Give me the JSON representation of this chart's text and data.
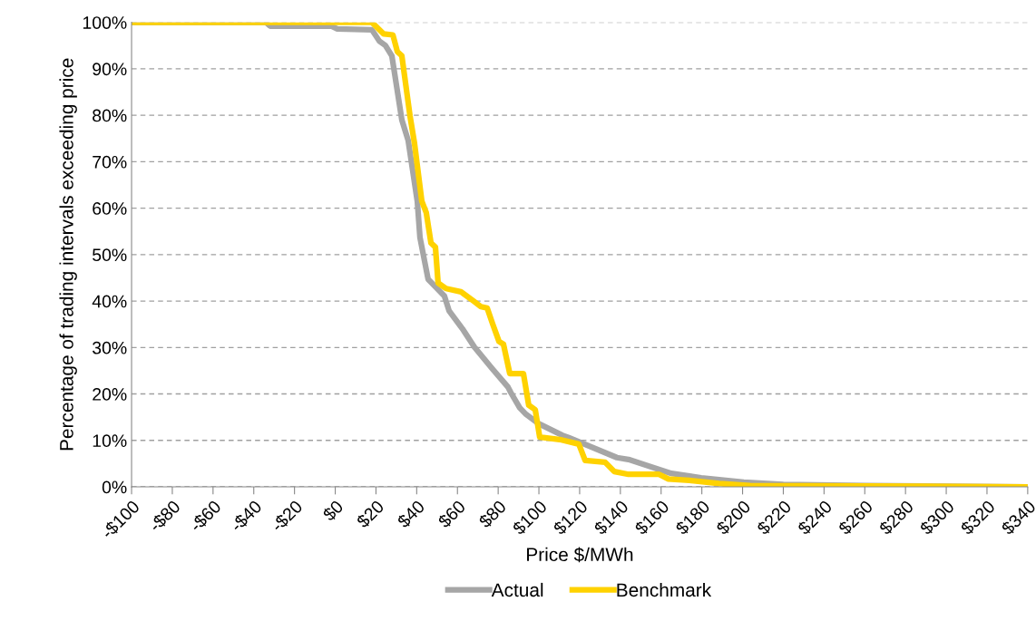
{
  "chart_data": {
    "type": "line",
    "xlabel": "Price $/MWh",
    "ylabel": "Percentage of trading intervals exceeding price",
    "xlim": [
      -100,
      340
    ],
    "ylim": [
      0,
      100
    ],
    "xticks": [
      {
        "value": -100,
        "label": "-$100"
      },
      {
        "value": -80,
        "label": "-$80"
      },
      {
        "value": -60,
        "label": "-$60"
      },
      {
        "value": -40,
        "label": "-$40"
      },
      {
        "value": -20,
        "label": "-$20"
      },
      {
        "value": 0,
        "label": "$0"
      },
      {
        "value": 20,
        "label": "$20"
      },
      {
        "value": 40,
        "label": "$40"
      },
      {
        "value": 60,
        "label": "$60"
      },
      {
        "value": 80,
        "label": "$80"
      },
      {
        "value": 100,
        "label": "$100"
      },
      {
        "value": 120,
        "label": "$120"
      },
      {
        "value": 140,
        "label": "$140"
      },
      {
        "value": 160,
        "label": "$160"
      },
      {
        "value": 180,
        "label": "$180"
      },
      {
        "value": 200,
        "label": "$200"
      },
      {
        "value": 220,
        "label": "$220"
      },
      {
        "value": 240,
        "label": "$240"
      },
      {
        "value": 260,
        "label": "$260"
      },
      {
        "value": 280,
        "label": "$280"
      },
      {
        "value": 300,
        "label": "$300"
      },
      {
        "value": 320,
        "label": "$320"
      },
      {
        "value": 340,
        "label": "$340"
      }
    ],
    "yticks": [
      {
        "value": 0,
        "label": "0%"
      },
      {
        "value": 10,
        "label": "10%"
      },
      {
        "value": 20,
        "label": "20%"
      },
      {
        "value": 30,
        "label": "30%"
      },
      {
        "value": 40,
        "label": "40%"
      },
      {
        "value": 50,
        "label": "50%"
      },
      {
        "value": 60,
        "label": "60%"
      },
      {
        "value": 70,
        "label": "70%"
      },
      {
        "value": 80,
        "label": "80%"
      },
      {
        "value": 90,
        "label": "90%"
      },
      {
        "value": 100,
        "label": "100%"
      }
    ],
    "grid": "y",
    "legend": "bottom",
    "marker": "none",
    "line_style": "solid",
    "series": [
      {
        "name": "Actual",
        "color": "#a6a6a6",
        "x": [
          -100,
          -34,
          -32,
          -2,
          1,
          18,
          21.6,
          24.7,
          27.8,
          32.7,
          35.8,
          40.3,
          41.6,
          45.6,
          53.6,
          55.9,
          62.5,
          68.3,
          77.2,
          84.8,
          86.2,
          90.6,
          93.7,
          99.5,
          111.5,
          114.6,
          138.3,
          144,
          165,
          179.7,
          200.6,
          220,
          260,
          340
        ],
        "values": [
          100,
          100,
          99.2,
          99.2,
          98.6,
          98.4,
          96,
          95,
          92.8,
          79,
          74.6,
          61.5,
          53.7,
          44.7,
          41.1,
          37.9,
          34,
          30.1,
          25.4,
          21.5,
          20.3,
          17,
          15.6,
          13.7,
          11.1,
          10.6,
          6.3,
          5.9,
          2.9,
          1.95,
          1,
          0.5,
          0.3,
          0
        ]
      },
      {
        "name": "Benchmark",
        "color": "#ffd200",
        "x": [
          -100,
          18,
          19.4,
          23.8,
          28.3,
          30.5,
          32.7,
          36.7,
          38.9,
          42.5,
          44.7,
          47,
          49.2,
          50.5,
          54.4,
          61.7,
          67.9,
          71.5,
          74.6,
          77.2,
          80.4,
          82.6,
          85.7,
          92.4,
          95,
          98.2,
          100.4,
          110.2,
          119.6,
          122.7,
          132.5,
          137,
          144,
          159,
          163.6,
          173.9,
          188.6,
          203.7,
          260,
          340
        ],
        "values": [
          100,
          100,
          99.4,
          97.5,
          97.3,
          93.7,
          92.8,
          79.9,
          74,
          61.5,
          59,
          52.5,
          51.6,
          43.9,
          42.7,
          42,
          40,
          38.8,
          38.5,
          35.2,
          31.3,
          30.7,
          24.4,
          24.4,
          17.6,
          16.6,
          10.7,
          10.2,
          9.2,
          5.7,
          5.3,
          3.3,
          2.7,
          2.7,
          1.7,
          1.4,
          0.7,
          0.3,
          0.2,
          0
        ]
      }
    ]
  }
}
